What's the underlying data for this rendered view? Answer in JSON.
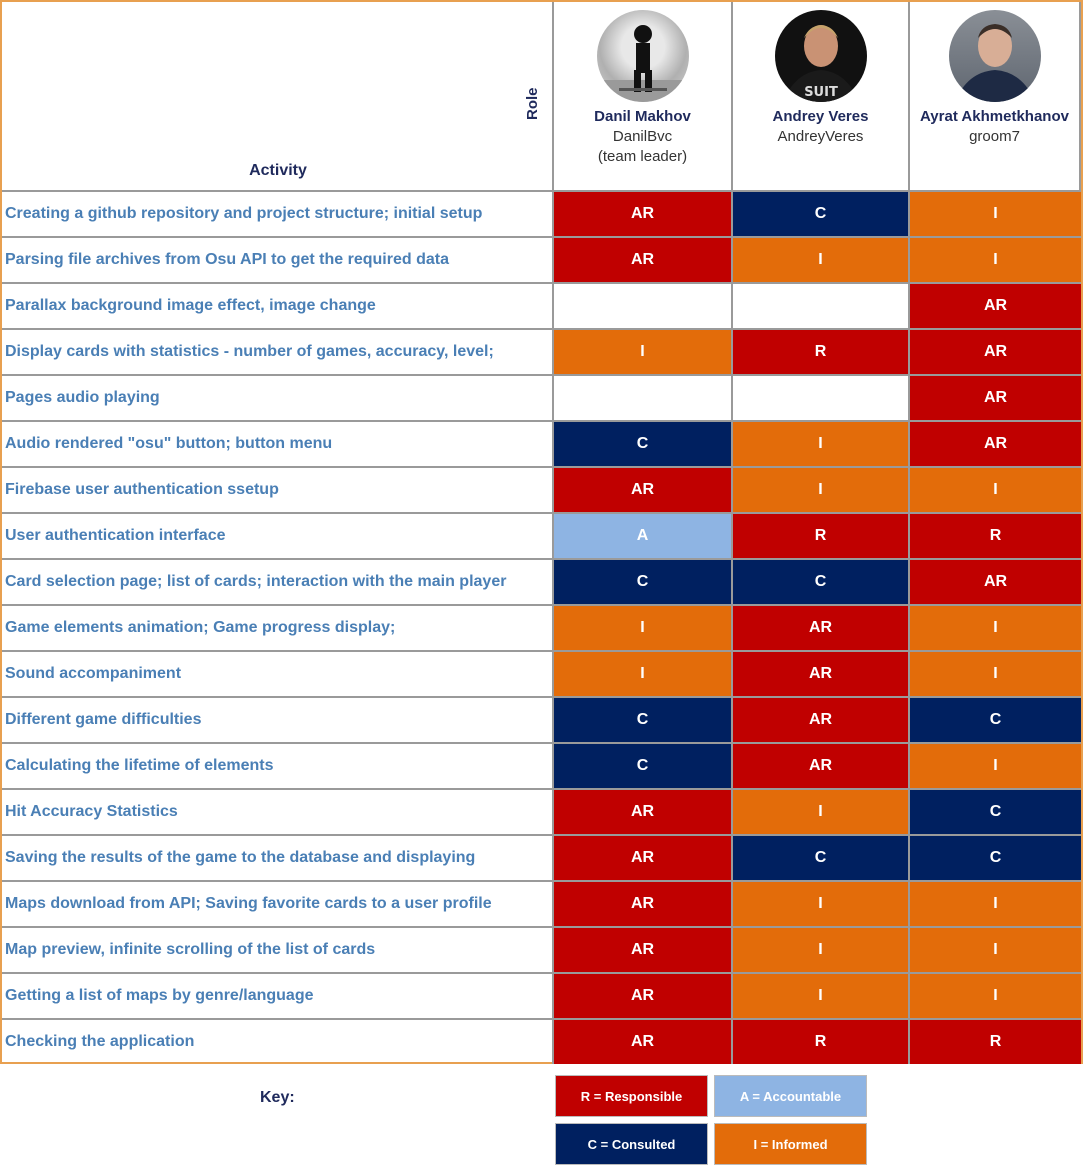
{
  "header": {
    "activity_label": "Activity",
    "role_label": "Role",
    "people": [
      {
        "name": "Danil Makhov",
        "username": "DanilBvc",
        "note": "(team leader)"
      },
      {
        "name": "Andrey Veres",
        "username": "AndreyVeres",
        "note": ""
      },
      {
        "name": "Ayrat Akhmetkhanov",
        "username": "groom7",
        "note": ""
      }
    ]
  },
  "colors": {
    "R": "#c00000",
    "AR": "#c00000",
    "A": "#8eb4e3",
    "C": "#002060",
    "I": "#e36c0a",
    "": "#ffffff"
  },
  "rows": [
    {
      "activity": "Creating a github repository and  project structure; initial setup",
      "roles": [
        "AR",
        "C",
        "I"
      ]
    },
    {
      "activity": "Parsing file archives from Osu API to get the required data",
      "roles": [
        "AR",
        "I",
        "I"
      ]
    },
    {
      "activity": "Parallax background image effect, image change",
      "roles": [
        "",
        "",
        "AR"
      ]
    },
    {
      "activity": "Display cards with statistics - number of games, accuracy, level;",
      "roles": [
        "I",
        "R",
        "AR"
      ]
    },
    {
      "activity": "Pages audio playing",
      "roles": [
        "",
        "",
        "AR"
      ]
    },
    {
      "activity": "Audio rendered \"osu\" button; button menu",
      "roles": [
        "C",
        "I",
        "AR"
      ]
    },
    {
      "activity": "Firebase user authentication ssetup",
      "roles": [
        "AR",
        "I",
        "I"
      ]
    },
    {
      "activity": "User authentication interface",
      "roles": [
        "A",
        "R",
        "R"
      ]
    },
    {
      "activity": "Card selection page; list of cards; interaction with the main player",
      "roles": [
        "C",
        "C",
        "AR"
      ]
    },
    {
      "activity": "Game elements animation; Game progress display;",
      "roles": [
        "I",
        "AR",
        "I"
      ]
    },
    {
      "activity": "Sound accompaniment",
      "roles": [
        "I",
        "AR",
        "I"
      ]
    },
    {
      "activity": "Different game difficulties",
      "roles": [
        "C",
        "AR",
        "C"
      ]
    },
    {
      "activity": "Calculating the lifetime of elements",
      "roles": [
        "C",
        "AR",
        "I"
      ]
    },
    {
      "activity": "Hit Accuracy Statistics",
      "roles": [
        "AR",
        "I",
        "C"
      ]
    },
    {
      "activity": "Saving the results of the game to the database and displaying",
      "roles": [
        "AR",
        "C",
        "C"
      ]
    },
    {
      "activity": "Maps download from API; Saving favorite cards to a user profile",
      "roles": [
        "AR",
        "I",
        "I"
      ]
    },
    {
      "activity": "Map preview, infinite scrolling of the list of cards",
      "roles": [
        "AR",
        "I",
        "I"
      ]
    },
    {
      "activity": "Getting a list of maps by genre/language",
      "roles": [
        "AR",
        "I",
        "I"
      ]
    },
    {
      "activity": "Checking the application",
      "roles": [
        "AR",
        "R",
        "R"
      ]
    }
  ],
  "key": {
    "label": "Key:",
    "items": [
      {
        "text": "R = Responsible",
        "color": "#c00000"
      },
      {
        "text": "A = Accountable",
        "color": "#8eb4e3"
      },
      {
        "text": "C = Consulted",
        "color": "#002060"
      },
      {
        "text": "I = Informed",
        "color": "#e36c0a"
      }
    ]
  }
}
